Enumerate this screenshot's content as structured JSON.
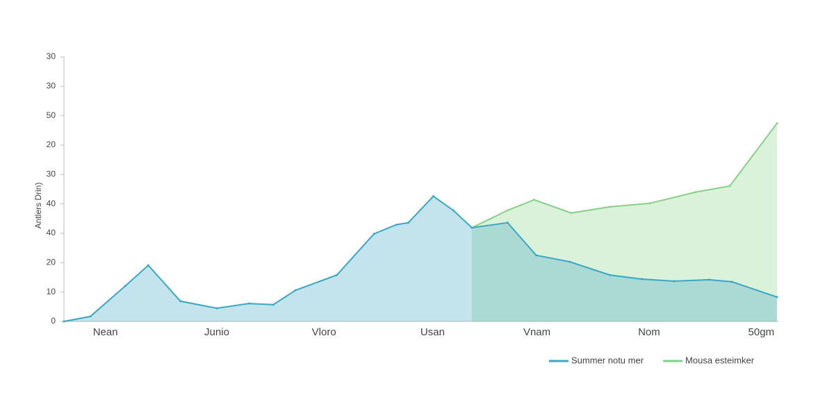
{
  "chart_data": {
    "type": "area",
    "y_label": "Antlers Drin)",
    "xlim": [
      0,
      100
    ],
    "xticks": [
      {
        "value": 5.8,
        "label": "Nean"
      },
      {
        "value": 21.4,
        "label": "Junio"
      },
      {
        "value": 36.4,
        "label": "Vloro"
      },
      {
        "value": 51.6,
        "label": "Usan"
      },
      {
        "value": 66.2,
        "label": "Vnam"
      },
      {
        "value": 81.9,
        "label": "Nom"
      },
      {
        "value": 97.6,
        "label": "50gm"
      }
    ],
    "ylim": [
      0,
      90
    ],
    "yticks": [
      0,
      10,
      20,
      {
        "value": 30,
        "label": "40"
      },
      {
        "value": 40,
        "label": "40"
      },
      {
        "value": 50,
        "label": "30"
      },
      {
        "value": 60,
        "label": "20"
      },
      {
        "value": 70,
        "label": "50"
      },
      {
        "value": 80,
        "label": "30"
      },
      {
        "value": 90,
        "label": "30"
      }
    ],
    "series": [
      {
        "name": "Mousa esteimker",
        "color": "#86cf86",
        "x": [
          57.1,
          62.1,
          65.8,
          71.0,
          76.4,
          82.0,
          88.4,
          93.2,
          99.8
        ],
        "values": [
          31.9,
          37.8,
          41.4,
          36.9,
          39.0,
          40.2,
          44.0,
          46.1,
          67.4
        ]
      },
      {
        "name": "Summer notu mer",
        "color": "#3aa6c4",
        "x": [
          0,
          3.7,
          8.6,
          11.8,
          16.3,
          21.4,
          25.9,
          29.3,
          32.4,
          38.2,
          43.4,
          46.5,
          48.2,
          51.7,
          54.5,
          57.1,
          62.1,
          66.1,
          70.8,
          76.4,
          80.9,
          85.4,
          90.3,
          93.5,
          99.8
        ],
        "values": [
          0,
          1.7,
          12.1,
          19.1,
          6.9,
          4.5,
          6.1,
          5.7,
          10.6,
          15.8,
          29.8,
          32.9,
          33.6,
          42.6,
          37.8,
          31.9,
          33.6,
          22.5,
          20.3,
          15.8,
          14.4,
          13.7,
          14.2,
          13.5,
          8.3
        ]
      }
    ]
  }
}
